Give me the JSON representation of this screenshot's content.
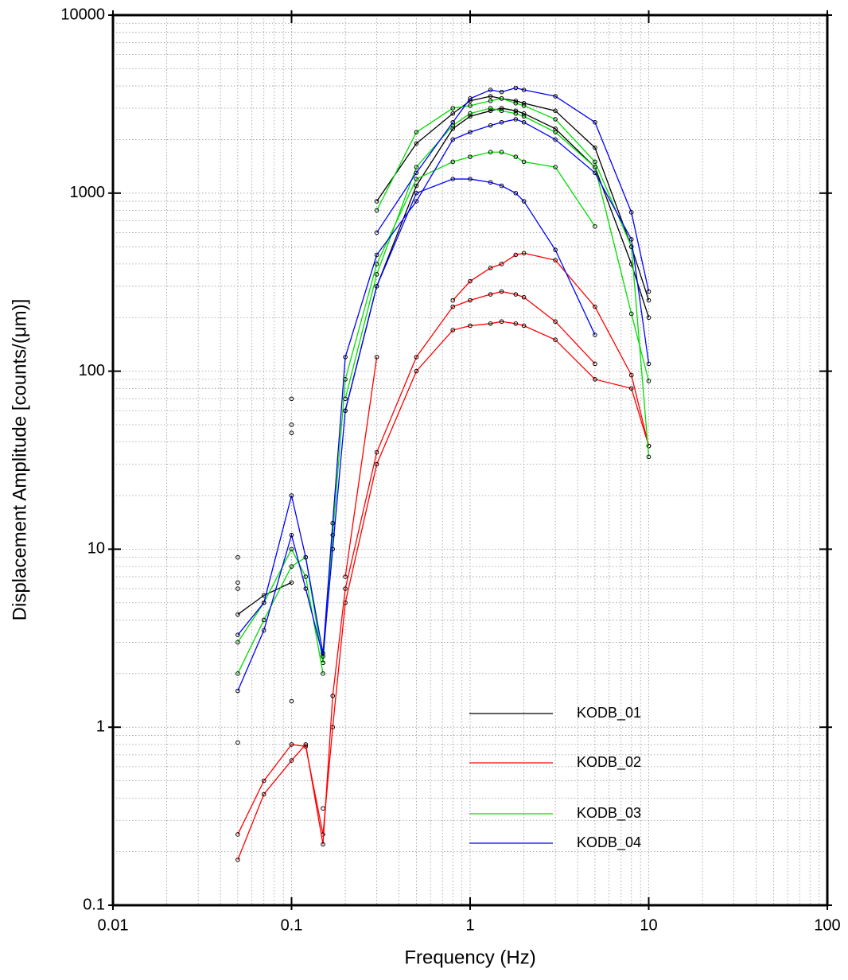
{
  "chart_data": {
    "type": "line",
    "x_label": "Frequency (Hz)",
    "y_label": "Displacement Amplitude [counts/(μm)]",
    "x": [
      0.05,
      0.07,
      0.1,
      0.12,
      0.15,
      0.17,
      0.2,
      0.3,
      0.5,
      0.8,
      1,
      1.3,
      1.5,
      1.8,
      2,
      3,
      5,
      8,
      10
    ],
    "xlog": true,
    "ylog": true,
    "grid": true,
    "minor_grid": true,
    "markers": true,
    "legend": "lower right",
    "xlim": [
      0.01,
      100
    ],
    "xticks": [
      0.01,
      0.1,
      1,
      10,
      100
    ],
    "ylim": [
      0.1,
      10000
    ],
    "yticks": [
      0.1,
      1,
      10,
      100,
      1000,
      10000
    ],
    "series": [
      {
        "name": "KODB_01",
        "color": "#000000",
        "curves": [
          {
            "values": [
              9,
              null,
              70,
              null,
              null,
              null,
              null,
              900,
              1900,
              2800,
              3300,
              3500,
              3400,
              3300,
              3200,
              2900,
              1800,
              500,
              250
            ]
          },
          {
            "values": [
              4.3,
              5.5,
              6.5,
              null,
              2.3,
              null,
              60,
              300,
              1100,
              2300,
              2700,
              2900,
              3000,
              2900,
              2800,
              2300,
              1400,
              400,
              200
            ]
          }
        ]
      },
      {
        "name": "KODB_02",
        "color": "#ff0000",
        "curves": [
          {
            "values": [
              0.82,
              null,
              1.4,
              null,
              0.35,
              null,
              7,
              120,
              null,
              250,
              320,
              380,
              400,
              450,
              460,
              420,
              230,
              95,
              38
            ]
          },
          {
            "values": [
              0.25,
              0.5,
              0.8,
              0.78,
              0.25,
              1,
              5,
              30,
              100,
              170,
              180,
              185,
              190,
              185,
              180,
              150,
              90,
              80,
              38
            ]
          },
          {
            "values": [
              0.18,
              0.42,
              0.65,
              0.8,
              0.22,
              1.5,
              6,
              35,
              120,
              230,
              250,
              270,
              280,
              270,
              260,
              190,
              110,
              null,
              null
            ]
          }
        ]
      },
      {
        "name": "KODB_03",
        "color": "#00dd00",
        "curves": [
          {
            "values": [
              6.5,
              null,
              45,
              null,
              null,
              null,
              null,
              800,
              2200,
              3000,
              3100,
              3300,
              3400,
              3200,
              3100,
              2600,
              1500,
              500,
              33
            ]
          },
          {
            "values": [
              2,
              4,
              8,
              9,
              2.3,
              12,
              90,
              400,
              1200,
              1500,
              1600,
              1700,
              1700,
              1600,
              1500,
              1400,
              650,
              null,
              null
            ]
          },
          {
            "values": [
              3,
              5,
              10,
              7,
              2,
              null,
              70,
              350,
              1400,
              2400,
              2800,
              3000,
              2900,
              2800,
              2700,
              2200,
              1400,
              210,
              88
            ]
          }
        ]
      },
      {
        "name": "KODB_04",
        "color": "#0000ff",
        "curves": [
          {
            "values": [
              6,
              null,
              50,
              null,
              null,
              null,
              null,
              600,
              1300,
              2500,
              3400,
              3800,
              3700,
              3900,
              3800,
              3500,
              2500,
              780,
              280
            ]
          },
          {
            "values": [
              1.6,
              3.5,
              12,
              6,
              2.5,
              10,
              60,
              300,
              1000,
              1200,
              1200,
              1150,
              1100,
              1000,
              900,
              480,
              160,
              null,
              null
            ]
          },
          {
            "values": [
              3.3,
              5,
              20,
              9,
              2.6,
              14,
              120,
              450,
              900,
              2000,
              2200,
              2400,
              2500,
              2600,
              2500,
              2000,
              1300,
              550,
              110
            ]
          }
        ]
      }
    ]
  }
}
